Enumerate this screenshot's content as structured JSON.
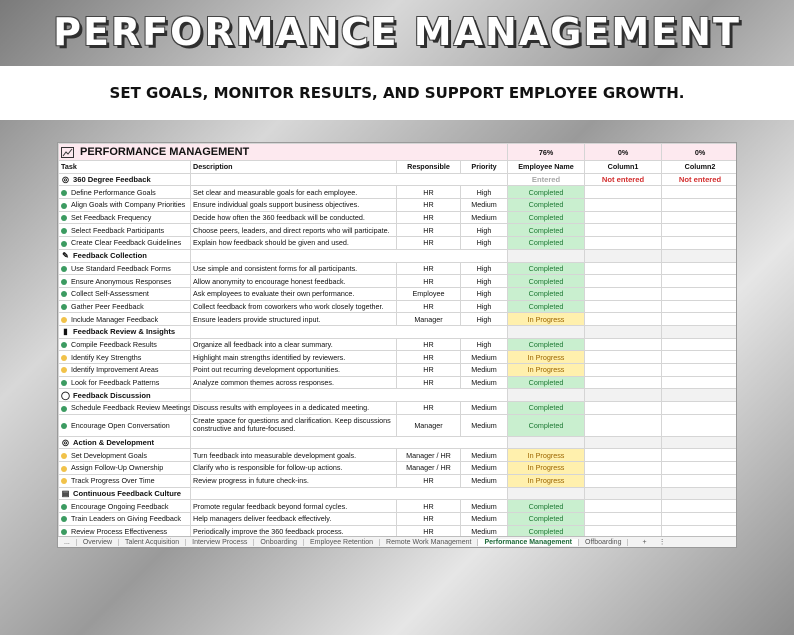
{
  "hero": {
    "title": "PERFORMANCE MANAGEMENT",
    "subtitle": "SET GOALS, MONITOR RESULTS, AND SUPPORT EMPLOYEE GROWTH."
  },
  "sheet": {
    "title": "PERFORMANCE MANAGEMENT",
    "percents": {
      "employee": "76%",
      "column1": "0%",
      "column2": "0%"
    },
    "headers": {
      "task": "Task",
      "description": "Description",
      "responsible": "Responsible",
      "priority": "Priority",
      "employee": "Employee Name",
      "column1": "Column1",
      "column2": "Column2"
    },
    "sections": [
      {
        "title": "360 Degree Feedback",
        "icon": "target-icon",
        "top_cells": {
          "employee": "Entered",
          "column1": "Not entered",
          "column2": "Not entered"
        },
        "rows": [
          {
            "task": "Define Performance Goals",
            "desc": "Set clear and measurable goals for each employee.",
            "resp": "HR",
            "pri": "High",
            "status": "Completed"
          },
          {
            "task": "Align Goals with Company Priorities",
            "desc": "Ensure individual goals support business objectives.",
            "resp": "HR",
            "pri": "Medium",
            "status": "Completed"
          },
          {
            "task": "Set Feedback Frequency",
            "desc": "Decide how often the 360 feedback will be conducted.",
            "resp": "HR",
            "pri": "Medium",
            "status": "Completed"
          },
          {
            "task": "Select Feedback Participants",
            "desc": "Choose peers, leaders, and direct reports who will participate.",
            "resp": "HR",
            "pri": "High",
            "status": "Completed"
          },
          {
            "task": "Create Clear Feedback Guidelines",
            "desc": "Explain how feedback should be given and used.",
            "resp": "HR",
            "pri": "High",
            "status": "Completed"
          }
        ]
      },
      {
        "title": "Feedback Collection",
        "icon": "edit-icon",
        "rows": [
          {
            "task": "Use Standard Feedback Forms",
            "desc": "Use simple and consistent forms for all participants.",
            "resp": "HR",
            "pri": "High",
            "status": "Completed"
          },
          {
            "task": "Ensure Anonymous Responses",
            "desc": "Allow anonymity to encourage honest feedback.",
            "resp": "HR",
            "pri": "High",
            "status": "Completed"
          },
          {
            "task": "Collect Self-Assessment",
            "desc": "Ask employees to evaluate their own performance.",
            "resp": "Employee",
            "pri": "High",
            "status": "Completed"
          },
          {
            "task": "Gather Peer Feedback",
            "desc": "Collect feedback from coworkers who work closely together.",
            "resp": "HR",
            "pri": "High",
            "status": "Completed"
          },
          {
            "task": "Include Manager Feedback",
            "desc": "Ensure leaders provide structured input.",
            "resp": "Manager",
            "pri": "High",
            "status": "In Progress"
          }
        ]
      },
      {
        "title": "Feedback Review & Insights",
        "icon": "bar-chart-icon",
        "rows": [
          {
            "task": "Compile Feedback Results",
            "desc": "Organize all feedback into a clear summary.",
            "resp": "HR",
            "pri": "High",
            "status": "Completed"
          },
          {
            "task": "Identify Key Strengths",
            "desc": "Highlight main strengths identified by reviewers.",
            "resp": "HR",
            "pri": "Medium",
            "status": "In Progress"
          },
          {
            "task": "Identify Improvement Areas",
            "desc": "Point out recurring development opportunities.",
            "resp": "HR",
            "pri": "Medium",
            "status": "In Progress"
          },
          {
            "task": "Look for Feedback Patterns",
            "desc": "Analyze common themes across responses.",
            "resp": "HR",
            "pri": "Medium",
            "status": "Completed"
          }
        ]
      },
      {
        "title": "Feedback Discussion",
        "icon": "speech-bubble-icon",
        "rows": [
          {
            "task": "Schedule Feedback Review Meetings",
            "desc": "Discuss results with employees in a dedicated meeting.",
            "resp": "HR",
            "pri": "Medium",
            "status": "Completed"
          },
          {
            "task": "Encourage Open Conversation",
            "desc": "Create space for questions and clarification. Keep discussions constructive and future-focused.",
            "resp": "Manager",
            "pri": "Medium",
            "status": "Completed",
            "tall": true
          }
        ]
      },
      {
        "title": "Action & Development",
        "icon": "target-icon",
        "rows": [
          {
            "task": "Set Development Goals",
            "desc": "Turn feedback into measurable development goals.",
            "resp": "Manager / HR",
            "pri": "Medium",
            "status": "In Progress"
          },
          {
            "task": "Assign Follow-Up Ownership",
            "desc": "Clarify who is responsible for follow-up actions.",
            "resp": "Manager / HR",
            "pri": "Medium",
            "status": "In Progress"
          },
          {
            "task": "Track Progress Over Time",
            "desc": "Review progress in future check-ins.",
            "resp": "HR",
            "pri": "Medium",
            "status": "In Progress"
          }
        ]
      },
      {
        "title": "Continuous Feedback Culture",
        "icon": "calendar-icon",
        "rows": [
          {
            "task": "Encourage Ongoing Feedback",
            "desc": "Promote regular feedback beyond formal cycles.",
            "resp": "HR",
            "pri": "Medium",
            "status": "Completed"
          },
          {
            "task": "Train Leaders on Giving Feedback",
            "desc": "Help managers deliver feedback effectively.",
            "resp": "HR",
            "pri": "Medium",
            "status": "Completed"
          },
          {
            "task": "Review Process Effectiveness",
            "desc": "Periodically improve the 360 feedback process.",
            "resp": "HR",
            "pri": "Medium",
            "status": "Completed"
          }
        ]
      }
    ]
  },
  "tabs": {
    "ellipsis": "...",
    "items": [
      "Overview",
      "Talent Acquisition",
      "Interview Process",
      "Onboarding",
      "Employee Retention",
      "Remote Work Management",
      "Performance Management",
      "Offboarding"
    ],
    "active": "Performance Management",
    "add": "+",
    "more": "⋮"
  },
  "colors": {
    "completed_bg": "#c9efcf",
    "completed_text": "#1f7a35",
    "progress_bg": "#fff0ad",
    "progress_text": "#9c6500",
    "not_entered": "#d32f2f",
    "active_tab": "#1e6b3a"
  },
  "icons": {
    "target-icon": "◎",
    "edit-icon": "✎",
    "bar-chart-icon": "▮",
    "speech-bubble-icon": "◯",
    "calendar-icon": "▤",
    "chart-icon": "↗"
  }
}
